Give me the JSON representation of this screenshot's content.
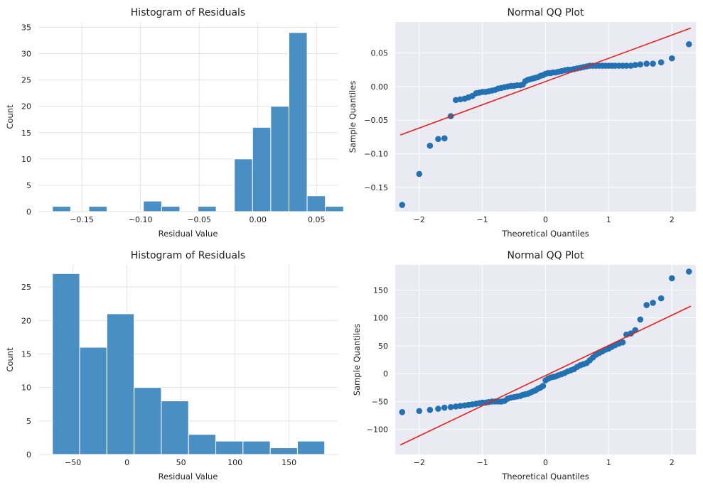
{
  "chart_data": [
    {
      "type": "histogram",
      "title": "Histogram of Residuals",
      "xlabel": "Residual Value",
      "ylabel": "Count",
      "xlim": [
        -0.187,
        0.068
      ],
      "ylim": [
        0,
        36
      ],
      "xticks": [
        -0.15,
        -0.1,
        -0.05,
        0.0,
        0.05
      ],
      "xtick_labels": [
        "−0.15",
        "−0.10",
        "−0.05",
        "0.00",
        "0.05"
      ],
      "yticks": [
        0,
        5,
        10,
        15,
        20,
        25,
        30,
        35
      ],
      "bins": [
        {
          "x0": -0.175,
          "x1": -0.1595,
          "count": 1
        },
        {
          "x0": -0.1595,
          "x1": -0.144,
          "count": 0
        },
        {
          "x0": -0.144,
          "x1": -0.1285,
          "count": 1
        },
        {
          "x0": -0.1285,
          "x1": -0.113,
          "count": 0
        },
        {
          "x0": -0.113,
          "x1": -0.0975,
          "count": 0
        },
        {
          "x0": -0.0975,
          "x1": -0.082,
          "count": 2
        },
        {
          "x0": -0.082,
          "x1": -0.0665,
          "count": 1
        },
        {
          "x0": -0.0665,
          "x1": -0.051,
          "count": 0
        },
        {
          "x0": -0.051,
          "x1": -0.0355,
          "count": 1
        },
        {
          "x0": -0.0355,
          "x1": -0.02,
          "count": 0
        },
        {
          "x0": -0.02,
          "x1": -0.0045,
          "count": 10
        },
        {
          "x0": -0.0045,
          "x1": 0.011,
          "count": 16
        },
        {
          "x0": 0.011,
          "x1": 0.0265,
          "count": 20
        },
        {
          "x0": 0.0265,
          "x1": 0.042,
          "count": 34
        },
        {
          "x0": 0.042,
          "x1": 0.0575,
          "count": 3
        },
        {
          "x0": 0.0575,
          "x1": 0.073,
          "count": 1
        }
      ]
    },
    {
      "type": "scatter",
      "title": "Normal QQ Plot",
      "xlabel": "Theoretical Quantiles",
      "ylabel": "Sample Quantiles",
      "xlim": [
        -2.38,
        2.38
      ],
      "ylim": [
        -0.186,
        0.096
      ],
      "xticks": [
        -2,
        -1,
        0,
        1,
        2
      ],
      "xtick_labels": [
        "−2",
        "−1",
        "0",
        "1",
        "2"
      ],
      "yticks": [
        -0.15,
        -0.1,
        -0.05,
        0.0,
        0.05
      ],
      "ytick_labels": [
        "−0.15",
        "−0.10",
        "−0.05",
        "0.00",
        "0.05"
      ],
      "reference_line": {
        "x": [
          -2.3,
          2.3
        ],
        "y": [
          -0.072,
          0.087
        ]
      },
      "points": [
        [
          -2.27,
          -0.176
        ],
        [
          -2.0,
          -0.13
        ],
        [
          -1.83,
          -0.088
        ],
        [
          -1.7,
          -0.078
        ],
        [
          -1.6,
          -0.077
        ],
        [
          -1.5,
          -0.044
        ],
        [
          -1.42,
          -0.02
        ],
        [
          -1.35,
          -0.019
        ],
        [
          -1.28,
          -0.018
        ],
        [
          -1.22,
          -0.016
        ],
        [
          -1.16,
          -0.014
        ],
        [
          -1.1,
          -0.01
        ],
        [
          -1.05,
          -0.009
        ],
        [
          -1.0,
          -0.008
        ],
        [
          -0.95,
          -0.008
        ],
        [
          -0.9,
          -0.007
        ],
        [
          -0.85,
          -0.006
        ],
        [
          -0.8,
          -0.005
        ],
        [
          -0.75,
          -0.003
        ],
        [
          -0.7,
          -0.002
        ],
        [
          -0.65,
          -0.001
        ],
        [
          -0.6,
          0.0
        ],
        [
          -0.55,
          0.001
        ],
        [
          -0.5,
          0.001
        ],
        [
          -0.45,
          0.002
        ],
        [
          -0.4,
          0.002
        ],
        [
          -0.36,
          0.003
        ],
        [
          -0.32,
          0.008
        ],
        [
          -0.28,
          0.01
        ],
        [
          -0.24,
          0.011
        ],
        [
          -0.2,
          0.012
        ],
        [
          -0.16,
          0.013
        ],
        [
          -0.12,
          0.014
        ],
        [
          -0.08,
          0.016
        ],
        [
          -0.04,
          0.017
        ],
        [
          0.0,
          0.019
        ],
        [
          0.04,
          0.02
        ],
        [
          0.08,
          0.02
        ],
        [
          0.12,
          0.021
        ],
        [
          0.16,
          0.021
        ],
        [
          0.2,
          0.022
        ],
        [
          0.25,
          0.023
        ],
        [
          0.3,
          0.024
        ],
        [
          0.35,
          0.025
        ],
        [
          0.4,
          0.025
        ],
        [
          0.45,
          0.026
        ],
        [
          0.5,
          0.027
        ],
        [
          0.55,
          0.028
        ],
        [
          0.6,
          0.029
        ],
        [
          0.65,
          0.03
        ],
        [
          0.7,
          0.031
        ],
        [
          0.75,
          0.031
        ],
        [
          0.8,
          0.031
        ],
        [
          0.85,
          0.031
        ],
        [
          0.9,
          0.031
        ],
        [
          0.95,
          0.031
        ],
        [
          1.0,
          0.031
        ],
        [
          1.05,
          0.031
        ],
        [
          1.1,
          0.031
        ],
        [
          1.16,
          0.031
        ],
        [
          1.22,
          0.031
        ],
        [
          1.28,
          0.031
        ],
        [
          1.35,
          0.031
        ],
        [
          1.42,
          0.032
        ],
        [
          1.5,
          0.033
        ],
        [
          1.6,
          0.034
        ],
        [
          1.7,
          0.034
        ],
        [
          1.83,
          0.036
        ],
        [
          2.0,
          0.042
        ],
        [
          2.27,
          0.063
        ]
      ]
    },
    {
      "type": "histogram",
      "title": "Histogram of Residuals",
      "xlabel": "Residual Value",
      "ylabel": "Count",
      "xlim": [
        -82,
        195
      ],
      "ylim": [
        0,
        28.3
      ],
      "xticks": [
        -50,
        0,
        50,
        100,
        150
      ],
      "xtick_labels": [
        "−50",
        "0",
        "50",
        "100",
        "150"
      ],
      "yticks": [
        0,
        5,
        10,
        15,
        20,
        25
      ],
      "bins": [
        {
          "x0": -69.0,
          "x1": -43.8,
          "count": 27
        },
        {
          "x0": -43.8,
          "x1": -18.6,
          "count": 16
        },
        {
          "x0": -18.6,
          "x1": 6.6,
          "count": 21
        },
        {
          "x0": 6.6,
          "x1": 31.8,
          "count": 10
        },
        {
          "x0": 31.8,
          "x1": 57.0,
          "count": 8
        },
        {
          "x0": 57.0,
          "x1": 82.2,
          "count": 3
        },
        {
          "x0": 82.2,
          "x1": 107.4,
          "count": 2
        },
        {
          "x0": 107.4,
          "x1": 132.6,
          "count": 2
        },
        {
          "x0": 132.6,
          "x1": 157.8,
          "count": 1
        },
        {
          "x0": 157.8,
          "x1": 183.0,
          "count": 2
        }
      ]
    },
    {
      "type": "scatter",
      "title": "Normal QQ Plot",
      "xlabel": "Theoretical Quantiles",
      "ylabel": "Sample Quantiles",
      "xlim": [
        -2.38,
        2.38
      ],
      "ylim": [
        -145,
        195
      ],
      "xticks": [
        -2,
        -1,
        0,
        1,
        2
      ],
      "xtick_labels": [
        "−2",
        "−1",
        "0",
        "1",
        "2"
      ],
      "yticks": [
        -100,
        -50,
        0,
        50,
        100,
        150
      ],
      "ytick_labels": [
        "−100",
        "−50",
        "0",
        "50",
        "100",
        "150"
      ],
      "reference_line": {
        "x": [
          -2.3,
          2.3
        ],
        "y": [
          -128,
          121
        ]
      },
      "points": [
        [
          -2.27,
          -69
        ],
        [
          -2.0,
          -67
        ],
        [
          -1.83,
          -65
        ],
        [
          -1.7,
          -63
        ],
        [
          -1.6,
          -61
        ],
        [
          -1.5,
          -60
        ],
        [
          -1.42,
          -59
        ],
        [
          -1.35,
          -58
        ],
        [
          -1.28,
          -57
        ],
        [
          -1.22,
          -56
        ],
        [
          -1.16,
          -55
        ],
        [
          -1.1,
          -54
        ],
        [
          -1.05,
          -53
        ],
        [
          -1.0,
          -52
        ],
        [
          -0.95,
          -52
        ],
        [
          -0.9,
          -51
        ],
        [
          -0.85,
          -50
        ],
        [
          -0.8,
          -50
        ],
        [
          -0.75,
          -50
        ],
        [
          -0.7,
          -50
        ],
        [
          -0.65,
          -49
        ],
        [
          -0.6,
          -45
        ],
        [
          -0.55,
          -43
        ],
        [
          -0.5,
          -42
        ],
        [
          -0.45,
          -41
        ],
        [
          -0.4,
          -40
        ],
        [
          -0.36,
          -38
        ],
        [
          -0.32,
          -37
        ],
        [
          -0.28,
          -36
        ],
        [
          -0.24,
          -34
        ],
        [
          -0.2,
          -32
        ],
        [
          -0.16,
          -30
        ],
        [
          -0.12,
          -27
        ],
        [
          -0.08,
          -25
        ],
        [
          -0.04,
          -22
        ],
        [
          0.0,
          -12
        ],
        [
          0.04,
          -9
        ],
        [
          0.08,
          -7
        ],
        [
          0.12,
          -6
        ],
        [
          0.16,
          -5
        ],
        [
          0.2,
          -3
        ],
        [
          0.25,
          -1
        ],
        [
          0.3,
          1
        ],
        [
          0.35,
          4
        ],
        [
          0.4,
          6
        ],
        [
          0.45,
          8
        ],
        [
          0.5,
          12
        ],
        [
          0.55,
          15
        ],
        [
          0.6,
          17
        ],
        [
          0.65,
          19
        ],
        [
          0.7,
          24
        ],
        [
          0.75,
          29
        ],
        [
          0.8,
          34
        ],
        [
          0.85,
          37
        ],
        [
          0.9,
          40
        ],
        [
          0.95,
          43
        ],
        [
          1.0,
          45
        ],
        [
          1.05,
          48
        ],
        [
          1.1,
          51
        ],
        [
          1.16,
          54
        ],
        [
          1.22,
          56
        ],
        [
          1.28,
          70
        ],
        [
          1.35,
          72
        ],
        [
          1.42,
          78
        ],
        [
          1.5,
          97
        ],
        [
          1.6,
          123
        ],
        [
          1.7,
          127
        ],
        [
          1.83,
          135
        ],
        [
          2.0,
          171
        ],
        [
          2.27,
          183
        ]
      ]
    }
  ],
  "colors": {
    "bar": "#4a8fc3",
    "point": "#2271b3",
    "reference_line": "#e8201a",
    "qq_background": "#eaeaf2",
    "hist_background": "#ffffff",
    "grid_on_white": "#e3e3e3",
    "grid_on_gray": "#ffffff"
  }
}
